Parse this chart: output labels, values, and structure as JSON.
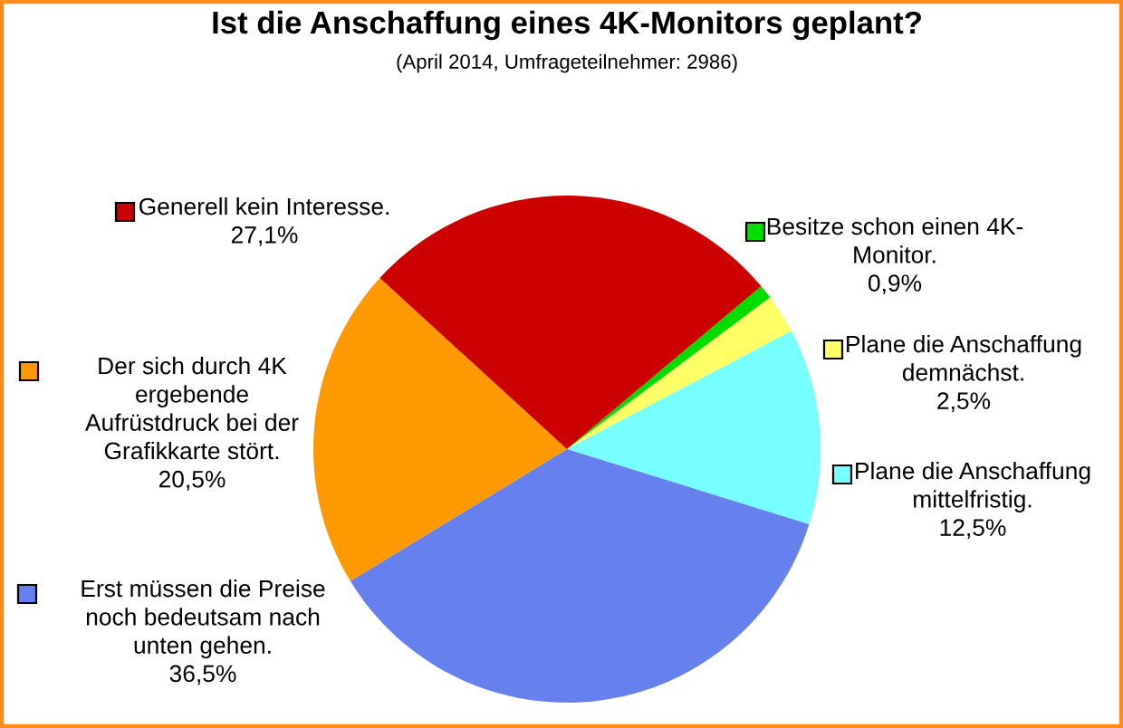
{
  "chart_data": {
    "type": "pie",
    "title": "Ist die Anschaffung eines 4K-Monitors geplant?",
    "subtitle": "(April 2014, Umfrageteilnehmer: 2986)",
    "categories": [
      "Besitze schon einen 4K-\nMonitor.",
      "Plane die Anschaffung\ndemnächst.",
      "Plane die Anschaffung\nmittelfristig.",
      "Erst müssen die Preise\nnoch bedeutsam nach\nunten gehen.",
      "Der sich durch 4K\nergebende\nAufrüstdruck bei der\nGrafikkarte stört.",
      "Generell kein Interesse."
    ],
    "values": [
      0.9,
      2.5,
      12.5,
      36.5,
      20.5,
      27.1
    ],
    "colors": [
      "#00dd00",
      "#ffff66",
      "#77ffff",
      "#6680ee",
      "#ff9900",
      "#cc0000"
    ],
    "value_labels": [
      "0,9%",
      "2,5%",
      "12,5%",
      "36,5%",
      "20,5%",
      "27,1%"
    ],
    "legend": "right"
  }
}
